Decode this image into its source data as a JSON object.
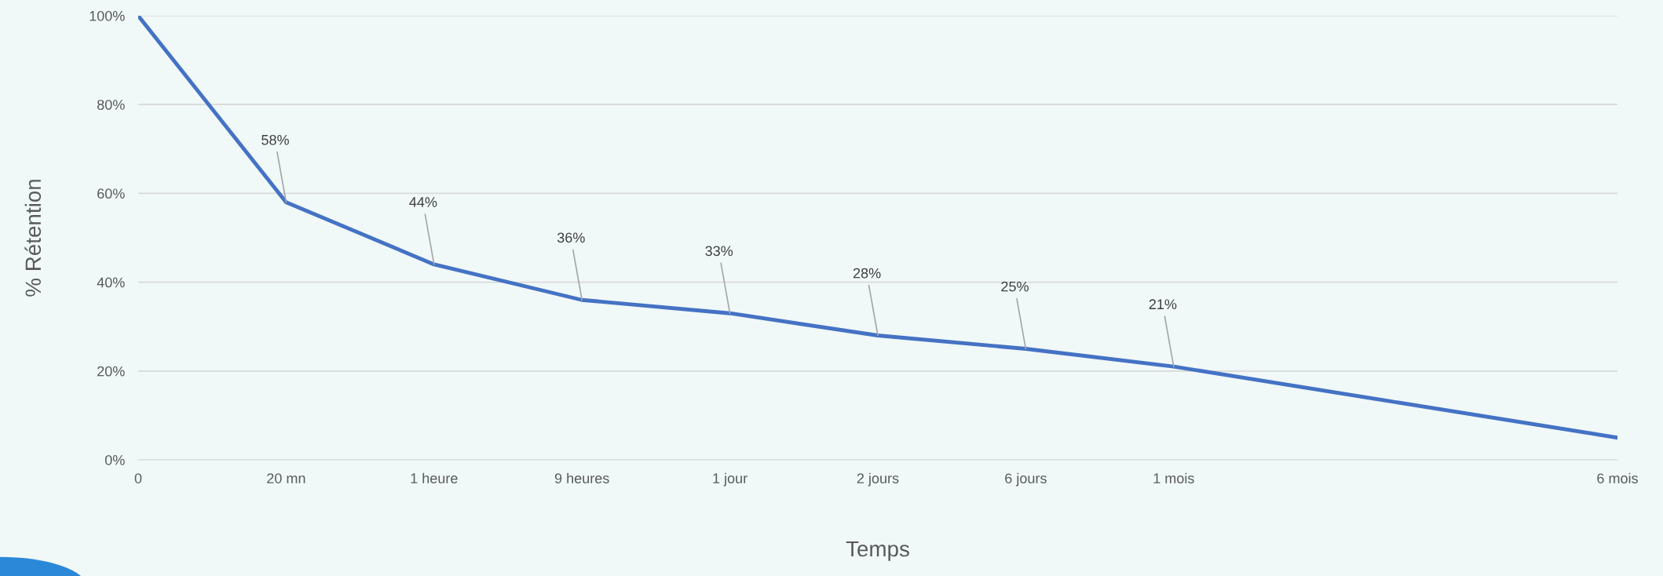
{
  "chart_data": {
    "type": "line",
    "xlabel": "Temps",
    "ylabel": "% Rétention",
    "categories": [
      "0",
      "20 mn",
      "1 heure",
      "9 heures",
      "1 jour",
      "2 jours",
      "6 jours",
      "1 mois",
      null,
      null,
      "6 mois"
    ],
    "series": [
      {
        "color": "#4472c4",
        "values": [
          100,
          58,
          44,
          36,
          33,
          28,
          25,
          21,
          null,
          null,
          5
        ],
        "value_labels": [
          null,
          "58%",
          "44%",
          "36%",
          "33%",
          "28%",
          "25%",
          "21%",
          null,
          null,
          null
        ]
      }
    ],
    "ylim": [
      0,
      100
    ],
    "yticks": [
      {
        "value": 0,
        "label": "0%"
      },
      {
        "value": 20,
        "label": "20%"
      },
      {
        "value": 40,
        "label": "40%"
      },
      {
        "value": 60,
        "label": "60%"
      },
      {
        "value": 80,
        "label": "80%"
      },
      {
        "value": 100,
        "label": "100%"
      }
    ],
    "grid": "y",
    "marker": "none",
    "line_style": "solid"
  }
}
